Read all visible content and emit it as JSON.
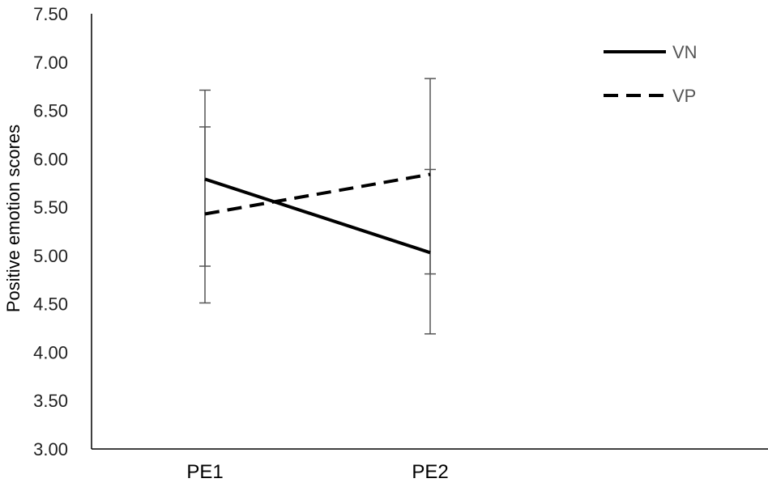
{
  "chart_data": {
    "type": "line",
    "title": "",
    "xlabel": "",
    "ylabel": "Positive emotion scores",
    "categories": [
      "PE1",
      "PE2"
    ],
    "ylim": [
      3.0,
      7.5
    ],
    "yticks": [
      "3.00",
      "3.50",
      "4.00",
      "4.50",
      "5.00",
      "5.50",
      "6.00",
      "6.50",
      "7.00",
      "7.50"
    ],
    "grid": false,
    "legend_position": "top-right",
    "series": [
      {
        "name": "VN",
        "values": [
          5.79,
          5.03
        ],
        "error_low": [
          4.51,
          4.19
        ],
        "error_high": [
          6.71,
          6.83
        ],
        "style": "solid",
        "color": "#000000"
      },
      {
        "name": "VP",
        "values": [
          5.43,
          5.84
        ],
        "error_low": [
          4.89,
          4.81
        ],
        "error_high": [
          6.33,
          5.89
        ],
        "style": "dashed",
        "color": "#000000"
      }
    ]
  }
}
